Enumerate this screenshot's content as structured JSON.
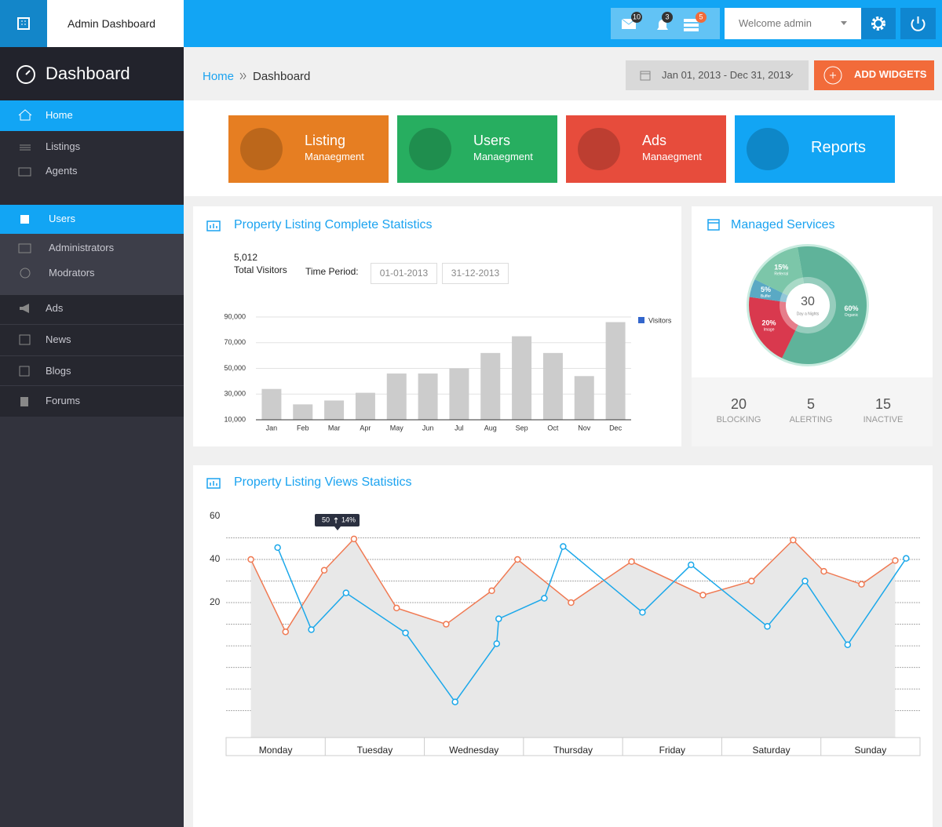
{
  "header": {
    "brand": "Admin Dashboard",
    "badges": {
      "messages": 10,
      "alerts": 3,
      "tasks": 5
    },
    "user": "Welcome admin"
  },
  "sidebar": {
    "title": "Dashboard",
    "items": [
      "Home",
      "Listings",
      "Agents",
      "Users",
      "Administrators",
      "Modrators",
      "Ads",
      "News",
      "Blogs",
      "Forums"
    ]
  },
  "breadcrumb": [
    "Home",
    "Dashboard"
  ],
  "date_range": "Jan 01, 2013 - Dec 31, 2013",
  "add_button": "ADD WIDGETS",
  "tiles": [
    {
      "title": "Listing",
      "subtitle": "Manaegment",
      "color": "#e67e22"
    },
    {
      "title": "Users",
      "subtitle": "Manaegment",
      "color": "#27ae60"
    },
    {
      "title": "Ads",
      "subtitle": "Manaegment",
      "color": "#e74c3c"
    },
    {
      "title": "Reports",
      "color": "#12a5f4"
    }
  ],
  "listing_panel": {
    "total": "5,012",
    "total_label": "Total Visitors",
    "period_label": "Time Period:",
    "from": "01-01-2013",
    "to": "31-12-2013"
  },
  "services_stats": [
    {
      "value": 20,
      "label": "BLOCKING"
    },
    {
      "value": 5,
      "label": "ALERTING"
    },
    {
      "value": 15,
      "label": "INACTIVE"
    }
  ],
  "chart_data": [
    {
      "type": "bar",
      "title": "Property Listing Complete Statistics",
      "categories": [
        "Jan",
        "Feb",
        "Mar",
        "Apr",
        "May",
        "Jun",
        "Jul",
        "Aug",
        "Sep",
        "Oct",
        "Nov",
        "Dec"
      ],
      "series": [
        {
          "name": "Visitors",
          "color": "#cccccc",
          "legend_color": "#3366cc",
          "values": [
            34000,
            22000,
            25000,
            31000,
            46000,
            46000,
            50000,
            62000,
            75000,
            62000,
            44000,
            86000
          ]
        }
      ],
      "ylim": [
        10000,
        90000
      ],
      "yticks": [
        {
          "value": 10000,
          "label": "10,000"
        },
        {
          "value": 30000,
          "label": "30,000"
        },
        {
          "value": 50000,
          "label": "50,000"
        },
        {
          "value": 70000,
          "label": "70,000"
        },
        {
          "value": 90000,
          "label": "90,000"
        }
      ],
      "grid": true
    },
    {
      "type": "pie",
      "title": "Managed Services",
      "categories": [
        "Organic",
        "Image",
        "Buffer",
        "Referral"
      ],
      "values": [
        60,
        20,
        5,
        15
      ],
      "value_labels": [
        "60%",
        "20%",
        "5%",
        "15%"
      ],
      "colors": [
        "#5fb39a",
        "#d9394e",
        "#5aa9c4",
        "#7cc6a9"
      ],
      "center_value": "30",
      "center_label": "Day a Nights"
    },
    {
      "type": "line",
      "title": "Property Listing Views Statistics",
      "categories": [
        "Monday",
        "Tuesday",
        "Wednesday",
        "Thursday",
        "Friday",
        "Saturday",
        "Sunday"
      ],
      "xlim": [
        0,
        7
      ],
      "ylim": [
        -42.5,
        60
      ],
      "yticks": [
        20,
        40,
        60
      ],
      "ygrid": [
        -30,
        -20,
        -10,
        0,
        10,
        20,
        30,
        40,
        50
      ],
      "series": [
        {
          "color": "#f07a53",
          "area": "#e8e8e8",
          "x": [
            0.25,
            0.6,
            0.99,
            1.29,
            1.72,
            2.22,
            2.68,
            2.94,
            3.48,
            4.09,
            4.81,
            5.3,
            5.72,
            6.03,
            6.41,
            6.75
          ],
          "values": [
            40,
            6.5,
            35,
            49.5,
            17.5,
            10,
            25.5,
            40,
            20,
            39,
            23.5,
            30,
            49,
            34.5,
            28.5,
            39.5
          ]
        },
        {
          "color": "#1ba8ea",
          "x": [
            0.52,
            0.86,
            1.21,
            1.81,
            2.31,
            2.73,
            2.75,
            3.21,
            3.4,
            4.2,
            4.69,
            5.46,
            5.84,
            6.27,
            6.86
          ],
          "values": [
            45.5,
            7.5,
            24.5,
            6,
            -26,
            1,
            12.5,
            22,
            46,
            15.5,
            37.5,
            9,
            30,
            0.5,
            40.5
          ]
        }
      ],
      "tooltip": {
        "value": "50",
        "change": "14%"
      }
    }
  ]
}
